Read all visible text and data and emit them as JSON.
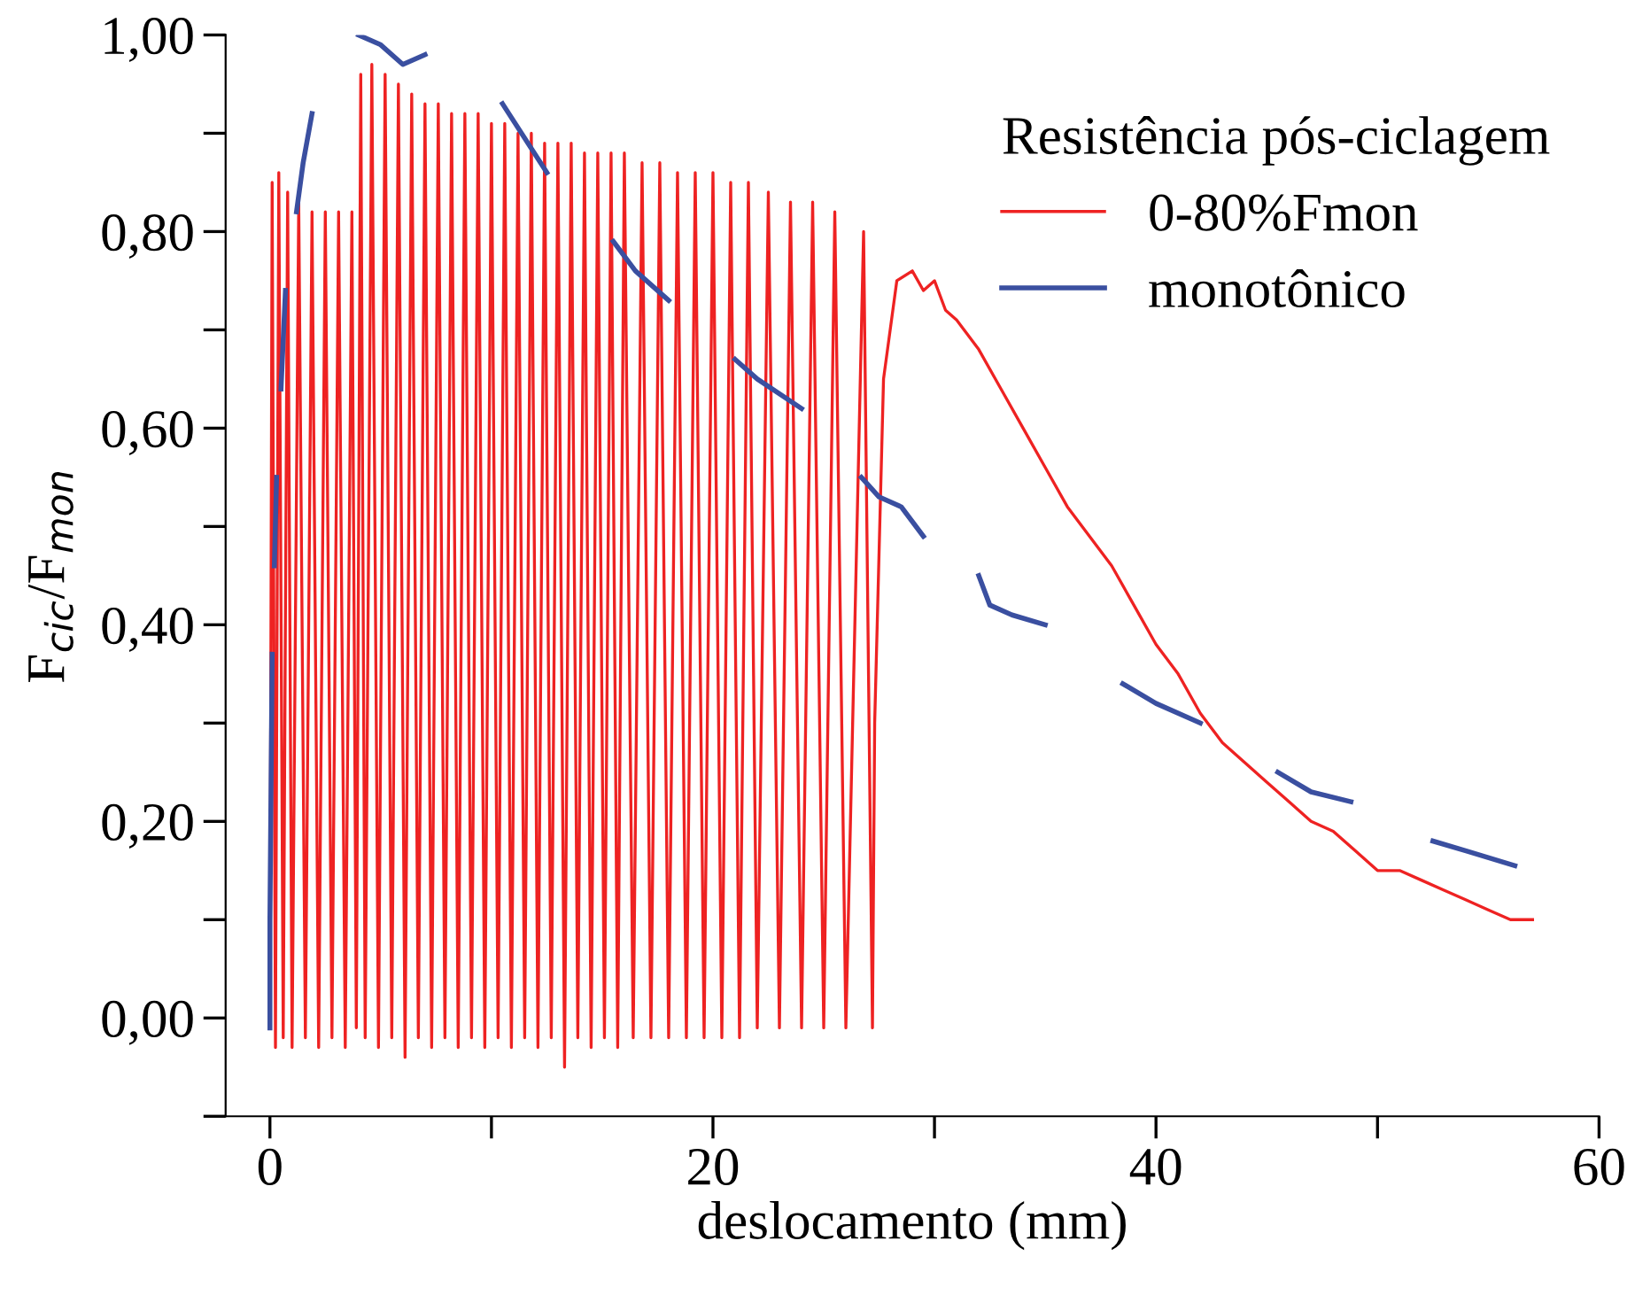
{
  "chart_data": {
    "type": "line",
    "xlabel": "deslocamento (mm)",
    "ylabel": "F$_{cic}$/F$_{mon}$",
    "legend_title": "Resistência pós-ciclagem",
    "legend": "top right",
    "grid": false,
    "xlim": [
      -2,
      60
    ],
    "xticks": [
      0,
      {
        "value": 10,
        "label": null
      },
      20,
      {
        "value": 30,
        "label": null
      },
      40,
      {
        "value": 50,
        "label": null
      },
      60
    ],
    "ylim": [
      -0.1,
      1.0
    ],
    "yticks": [
      {
        "value": -0.1,
        "label": null
      },
      {
        "value": 0,
        "label": "0,00"
      },
      {
        "value": 0.1,
        "label": null
      },
      {
        "value": 0.2,
        "label": "0,20"
      },
      {
        "value": 0.3,
        "label": null
      },
      {
        "value": 0.4,
        "label": "0,40"
      },
      {
        "value": 0.5,
        "label": null
      },
      {
        "value": 0.6,
        "label": "0,60"
      },
      {
        "value": 0.7,
        "label": null
      },
      {
        "value": 0.8,
        "label": "0,80"
      },
      {
        "value": 0.9,
        "label": null
      },
      {
        "value": 1.0,
        "label": "1,00"
      }
    ],
    "series": [
      {
        "name": "0-80%Fmon",
        "color": "#ee2222",
        "x": [
          0,
          0.1,
          0.25,
          0.4,
          0.6,
          0.8,
          1.0,
          1.3,
          1.6,
          1.9,
          2.2,
          2.5,
          2.8,
          3.1,
          3.4,
          3.7,
          3.9,
          4.1,
          4.3,
          4.6,
          4.9,
          5.2,
          5.5,
          5.8,
          6.1,
          6.4,
          6.7,
          7.0,
          7.3,
          7.6,
          7.9,
          8.2,
          8.5,
          8.8,
          9.1,
          9.4,
          9.7,
          10.0,
          10.3,
          10.6,
          10.9,
          11.2,
          11.5,
          11.8,
          12.1,
          12.4,
          12.7,
          13.0,
          13.3,
          13.6,
          13.9,
          14.2,
          14.5,
          14.8,
          15.1,
          15.4,
          15.7,
          16.0,
          16.4,
          16.8,
          17.2,
          17.6,
          18.0,
          18.4,
          18.8,
          19.2,
          19.6,
          20.0,
          20.4,
          20.8,
          21.2,
          21.6,
          22.0,
          22.5,
          23.0,
          23.5,
          24.0,
          24.5,
          25.0,
          25.5,
          26.0,
          26.8,
          27.2,
          27.3,
          27.7,
          28.3,
          29.0,
          29.5,
          30.0,
          30.5,
          31.0,
          32.0,
          33.0,
          34.0,
          35.0,
          36.0,
          37.0,
          38.0,
          39.0,
          40.0,
          41.0,
          42.0,
          43.0,
          44.0,
          45.0,
          46.0,
          47.0,
          48.0,
          49.0,
          50.0,
          51.0,
          52.0,
          53.0,
          54.0,
          55.0,
          56.0,
          57.0
        ],
        "values": [
          0.0,
          0.85,
          -0.03,
          0.86,
          -0.02,
          0.84,
          -0.03,
          0.83,
          -0.02,
          0.82,
          -0.03,
          0.82,
          -0.02,
          0.82,
          -0.03,
          0.82,
          -0.01,
          0.96,
          -0.02,
          0.97,
          -0.03,
          0.96,
          -0.02,
          0.95,
          -0.04,
          0.94,
          -0.02,
          0.93,
          -0.03,
          0.93,
          -0.02,
          0.92,
          -0.03,
          0.92,
          -0.02,
          0.92,
          -0.03,
          0.91,
          -0.02,
          0.91,
          -0.03,
          0.9,
          -0.02,
          0.9,
          -0.03,
          0.89,
          -0.02,
          0.89,
          -0.05,
          0.89,
          -0.02,
          0.88,
          -0.03,
          0.88,
          -0.02,
          0.88,
          -0.03,
          0.88,
          -0.02,
          0.87,
          -0.02,
          0.87,
          -0.02,
          0.86,
          -0.02,
          0.86,
          -0.02,
          0.86,
          -0.02,
          0.85,
          -0.02,
          0.85,
          -0.01,
          0.84,
          -0.01,
          0.83,
          -0.01,
          0.83,
          -0.01,
          0.82,
          -0.01,
          0.8,
          -0.01,
          0.3,
          0.65,
          0.75,
          0.76,
          0.74,
          0.75,
          0.72,
          0.71,
          0.68,
          0.64,
          0.6,
          0.56,
          0.52,
          0.49,
          0.46,
          0.42,
          0.38,
          0.35,
          0.31,
          0.28,
          0.26,
          0.24,
          0.22,
          0.2,
          0.19,
          0.17,
          0.15,
          0.15,
          0.14,
          0.13,
          0.12,
          0.11,
          0.1,
          0.1
        ]
      },
      {
        "name": "monotônico",
        "color": "#3a4fa0",
        "x": [
          0,
          0,
          0.1,
          0.15,
          0.2,
          0.3,
          0.4,
          0.5,
          0.7,
          0.9,
          1.2,
          1.5,
          1.9,
          3,
          4,
          5,
          6,
          7,
          8,
          10.5,
          12.5,
          14,
          15.5,
          16.5,
          18,
          19.5,
          21,
          22,
          24,
          25.5,
          26.7,
          27.5,
          28.5,
          29.5,
          31,
          32,
          32.5,
          33.5,
          35,
          37,
          38.5,
          40,
          42,
          44,
          45.5,
          47,
          48.8,
          51,
          52.5,
          54,
          56.2
        ],
        "values": [
          -0.01,
          0.1,
          0.37,
          null,
          0.46,
          0.55,
          null,
          0.64,
          0.74,
          null,
          0.82,
          0.87,
          0.92,
          null,
          1.0,
          0.99,
          0.97,
          0.98,
          null,
          0.93,
          0.86,
          null,
          0.79,
          0.76,
          0.73,
          null,
          0.67,
          0.65,
          0.62,
          null,
          0.55,
          0.53,
          0.52,
          0.49,
          null,
          0.45,
          0.42,
          0.41,
          0.4,
          null,
          0.34,
          0.32,
          0.3,
          null,
          0.25,
          0.23,
          0.22,
          null,
          0.18,
          0.17,
          0.155
        ]
      }
    ]
  }
}
